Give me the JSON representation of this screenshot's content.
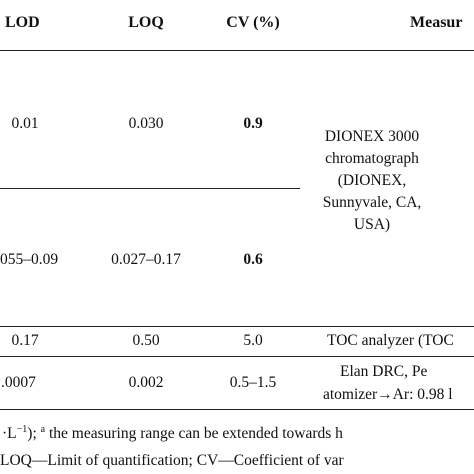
{
  "headers": {
    "lod": "LOD",
    "loq": "LOQ",
    "cv": "CV (%)",
    "measurement": "Measur"
  },
  "rows": [
    {
      "lod": "0.01",
      "loq": "0.030",
      "cv": "0.9"
    },
    {
      "lod": "055–0.09",
      "loq": "0.027–0.17",
      "cv": "0.6"
    },
    {
      "lod": "0.17",
      "loq": "0.50",
      "cv": "5.0",
      "measurement": "TOC analyzer (TOC"
    },
    {
      "lod": ".0007",
      "loq": "0.002",
      "cv": "0.5–1.5"
    }
  ],
  "merged_measurement": {
    "line1": "DIONEX 3000",
    "line2": "chromatograph",
    "line3": "(DIONEX,",
    "line4": "Sunnyvale, CA,",
    "line5": "USA)"
  },
  "elan": {
    "line1": "Elan DRC, Pe",
    "line2": "atomizer→Ar: 0.98 l"
  },
  "footnotes": {
    "line1_pre": "·L",
    "line1_exp": "−1",
    "line1_mid": "); ",
    "line1_sup": "a",
    "line1_post": " the measuring range can be extended towards h",
    "line2": " LOQ—Limit of quantification; CV—Coefficient of var"
  }
}
